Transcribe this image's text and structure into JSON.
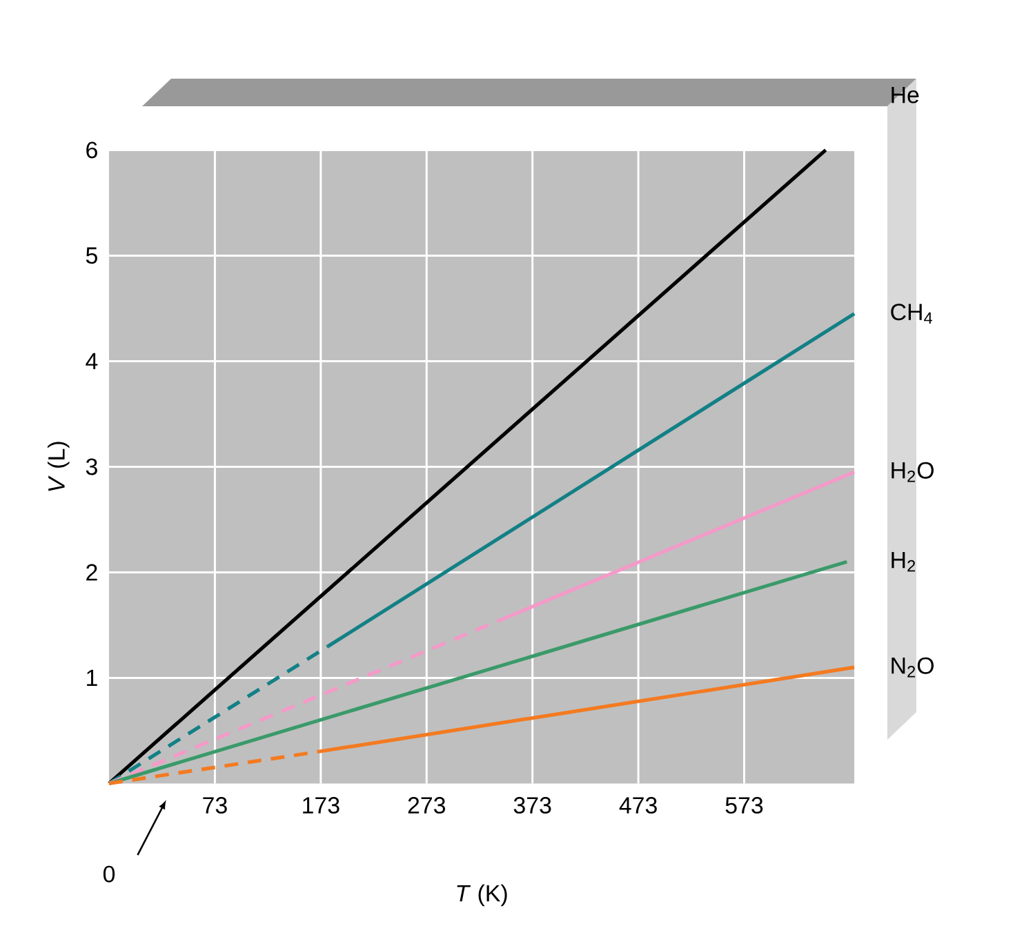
{
  "chart_data": {
    "type": "line",
    "xlabel": "*T* (K)",
    "ylabel": "*V* (L)",
    "xlim": [
      -27,
      677
    ],
    "ylim": [
      0,
      6
    ],
    "xticks": [
      73,
      173,
      273,
      373,
      473,
      573
    ],
    "yticks": [
      1,
      2,
      3,
      4,
      5,
      6
    ],
    "grid": true,
    "line_style": "solid",
    "marker": "none",
    "annotations": [
      "0"
    ],
    "series": [
      {
        "name": "He",
        "color": "#000000",
        "x": [
          -27,
          650
        ],
        "values": [
          0,
          6
        ]
      },
      {
        "color": "#138086",
        "line_style": "dashed",
        "x": [
          -27,
          180
        ],
        "values": [
          0,
          1.3
        ]
      },
      {
        "name": "CH$_{4}$",
        "color": "#138086",
        "x": [
          180,
          677
        ],
        "values": [
          1.3,
          4.45
        ]
      },
      {
        "color": "#f49ac8",
        "line_style": "dashed",
        "x": [
          -27,
          343
        ],
        "values": [
          0,
          1.55
        ]
      },
      {
        "name": "H$_{2}$O",
        "color": "#f49ac8",
        "x": [
          343,
          677
        ],
        "values": [
          1.55,
          2.95
        ]
      },
      {
        "name": "H$_{2}$",
        "color": "#3a9a6a",
        "x": [
          -27,
          670
        ],
        "values": [
          0,
          2.1
        ]
      },
      {
        "color": "#f47a20",
        "line_style": "dashed",
        "x": [
          -27,
          170
        ],
        "values": [
          0,
          0.3
        ]
      },
      {
        "name": "N$_{2}$O",
        "color": "#f47a20",
        "x": [
          170,
          677
        ],
        "values": [
          0.3,
          1.1
        ]
      }
    ]
  }
}
